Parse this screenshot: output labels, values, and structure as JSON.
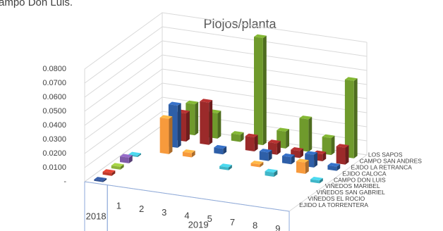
{
  "caption": "ampo Don Luis.",
  "chart_data": {
    "type": "bar3d",
    "title": "Piojos/planta",
    "categories": [
      null,
      "1",
      "2",
      "3",
      "4",
      "5",
      "7",
      "8",
      "9"
    ],
    "groups": [
      {
        "label": "2018",
        "count": 1
      },
      {
        "label": "2019",
        "count": 8
      }
    ],
    "ylim": [
      0,
      0.08
    ],
    "yticks": [
      {
        "value": 0,
        "label": "-"
      },
      {
        "value": 0.01,
        "label": "0.0100"
      },
      {
        "value": 0.02,
        "label": "0.0200"
      },
      {
        "value": 0.03,
        "label": "0.0300"
      },
      {
        "value": 0.04,
        "label": "0.0400"
      },
      {
        "value": 0.05,
        "label": "0.0500"
      },
      {
        "value": 0.06,
        "label": "0.0600"
      },
      {
        "value": 0.07,
        "label": "0.0700"
      },
      {
        "value": 0.08,
        "label": "0.0800"
      }
    ],
    "grid": true,
    "series": [
      {
        "name": "EJIDO LA TORRENTERA",
        "color": "#2f4f8f",
        "values": [
          0.001,
          null,
          null,
          null,
          null,
          null,
          null,
          null,
          null
        ]
      },
      {
        "name": "VIÑEDOS EL ROCIO",
        "color": "#c0392b",
        "values": [
          0.002,
          null,
          null,
          null,
          null,
          null,
          null,
          null,
          null
        ]
      },
      {
        "name": "VIÑEDOS SAN GABRIEL",
        "color": "#8db33a",
        "values": [
          0.002,
          null,
          null,
          null,
          null,
          null,
          null,
          null,
          null
        ]
      },
      {
        "name": "VIÑEDOS MARIBEL",
        "color": "#7e5aa8",
        "values": [
          0.004,
          null,
          null,
          null,
          null,
          null,
          null,
          null,
          null
        ]
      },
      {
        "name": "CAMPO DON LUIS",
        "color": "#3fb6c8",
        "values": [
          0.001,
          null,
          null,
          null,
          0.002,
          null,
          0.003,
          null,
          0.002
        ]
      },
      {
        "name": "EJIDO CALOCA",
        "color": "#f79a3c",
        "values": [
          null,
          0.025,
          0.003,
          null,
          null,
          0.002,
          null,
          0.008,
          null
        ]
      },
      {
        "name": "EJIDO LA RETRANCA",
        "color": "#2e5fa8",
        "values": [
          null,
          0.03,
          null,
          0.004,
          null,
          0.006,
          0.005,
          0.009,
          0.003
        ]
      },
      {
        "name": "CAMPO SAN ANDRES",
        "color": "#9b2a2a",
        "values": [
          null,
          0.02,
          0.03,
          null,
          0.01,
          0.008,
          0.005,
          0.005,
          0.012
        ]
      },
      {
        "name": "LOS SAPOS",
        "color": "#6f9a2c",
        "values": [
          null,
          0.022,
          0.018,
          0.005,
          0.076,
          0.012,
          0.023,
          0.012,
          0.055
        ]
      }
    ]
  }
}
